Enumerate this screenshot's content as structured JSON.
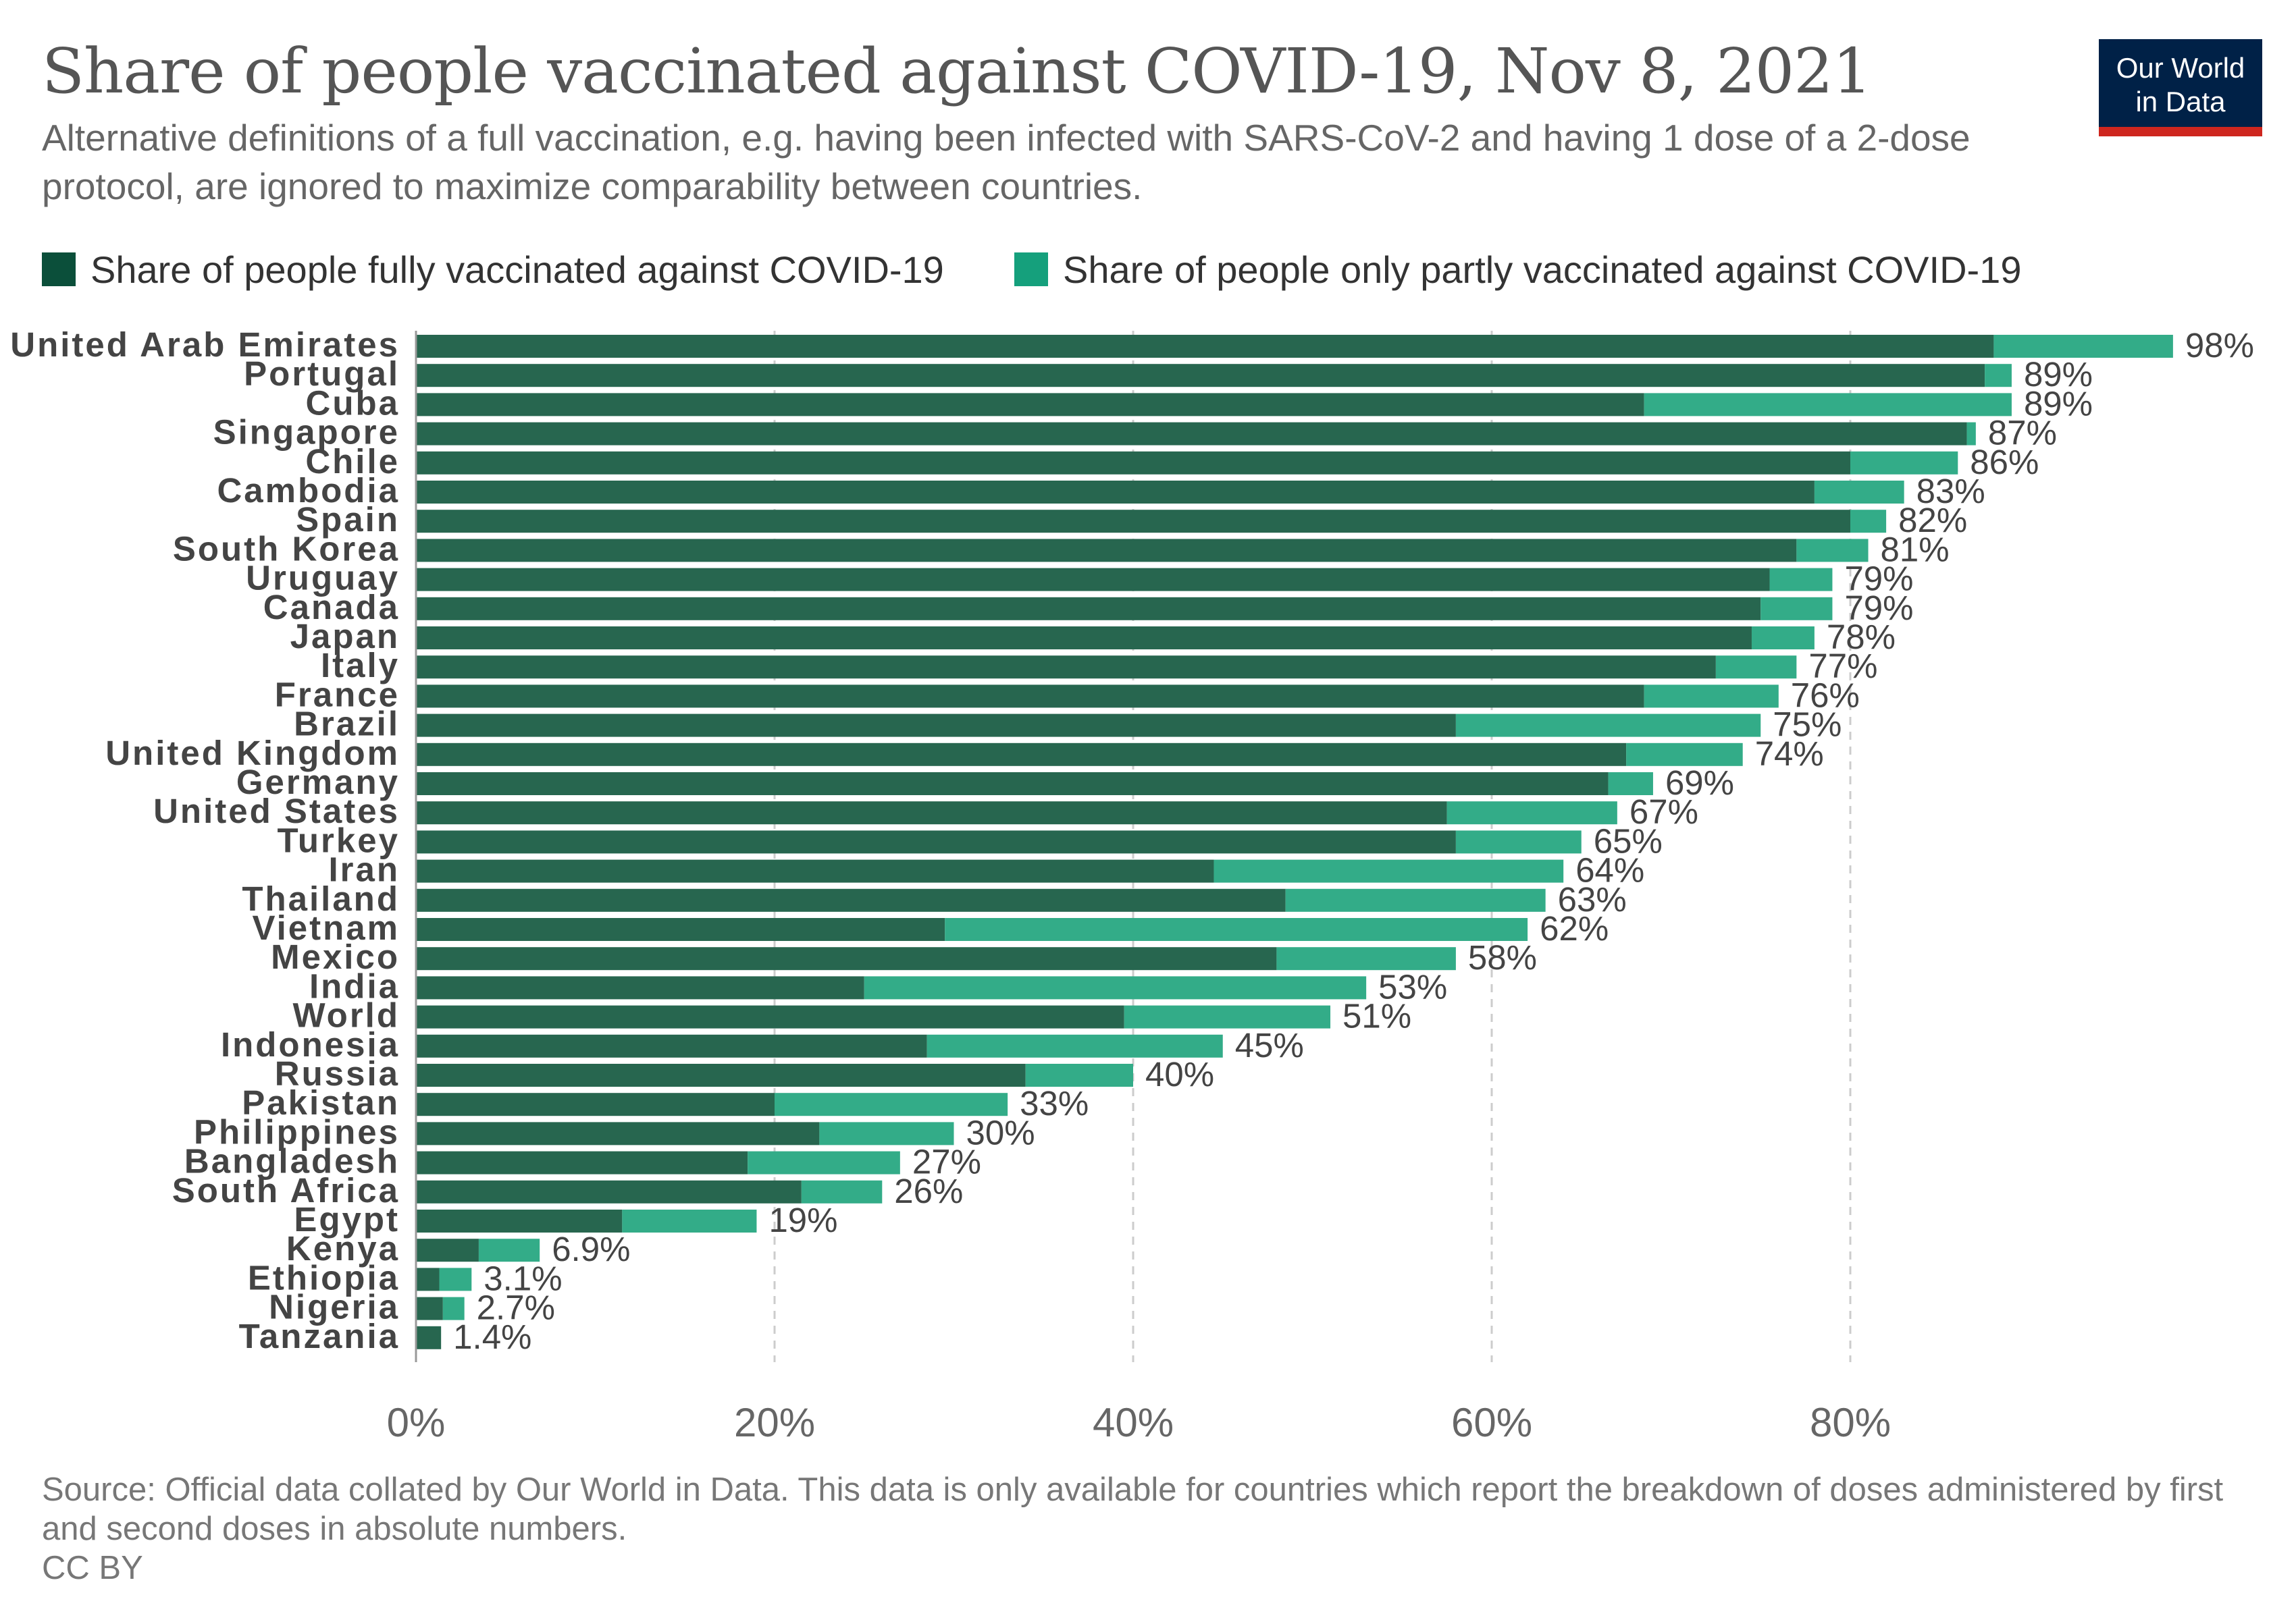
{
  "header": {
    "title": "Share of people vaccinated against COVID-19, Nov 8, 2021",
    "subtitle": "Alternative definitions of a full vaccination, e.g. having been infected with SARS-CoV-2 and having 1 dose of a 2-dose protocol, are ignored to maximize comparability between countries."
  },
  "logo": {
    "line1": "Our World",
    "line2": "in Data"
  },
  "colors": {
    "fully": "#27664f",
    "partly": "#33ac88",
    "legend_fully": "#0b4f3a",
    "legend_partly": "#15a07c",
    "grid": "#cccccc",
    "axis_text": "#666666",
    "label_text": "#444444",
    "logo_bg": "#002147",
    "logo_bar": "#ce261e"
  },
  "footer": {
    "source": "Source: Official data collated by Our World in Data. This data is only available for countries which report the breakdown of doses administered by first and second doses in absolute numbers.",
    "license": "CC BY"
  },
  "chart_data": {
    "type": "bar",
    "orientation": "horizontal",
    "stacked": true,
    "title": "Share of people vaccinated against COVID-19, Nov 8, 2021",
    "xlabel": "",
    "ylabel": "",
    "xlim": [
      0,
      100
    ],
    "x_ticks": [
      "0%",
      "20%",
      "40%",
      "60%",
      "80%"
    ],
    "x_tick_values": [
      0,
      20,
      40,
      60,
      80
    ],
    "grid": "vertical dashed",
    "legend_position": "top",
    "categories": [
      "United Arab Emirates",
      "Portugal",
      "Cuba",
      "Singapore",
      "Chile",
      "Cambodia",
      "Spain",
      "South Korea",
      "Uruguay",
      "Canada",
      "Japan",
      "Italy",
      "France",
      "Brazil",
      "United Kingdom",
      "Germany",
      "United States",
      "Turkey",
      "Iran",
      "Thailand",
      "Vietnam",
      "Mexico",
      "India",
      "World",
      "Indonesia",
      "Russia",
      "Pakistan",
      "Philippines",
      "Bangladesh",
      "South Africa",
      "Egypt",
      "Kenya",
      "Ethiopia",
      "Nigeria",
      "Tanzania"
    ],
    "series": [
      {
        "name": "Share of people fully vaccinated against COVID-19",
        "values": [
          88,
          87.5,
          68.5,
          86.5,
          80,
          78,
          80,
          77,
          75.5,
          75,
          74.5,
          72.5,
          68.5,
          58,
          67.5,
          66.5,
          57.5,
          58,
          44.5,
          48.5,
          29.5,
          48,
          25,
          39.5,
          28.5,
          34,
          20,
          22.5,
          18.5,
          21.5,
          11.5,
          3.5,
          1.3,
          1.5,
          1.4
        ]
      },
      {
        "name": "Share of people only partly vaccinated against COVID-19",
        "values": [
          10,
          1.5,
          20.5,
          0.5,
          6,
          5,
          2,
          4,
          3.5,
          4,
          3.5,
          4.5,
          7.5,
          17,
          6.5,
          2.5,
          9.5,
          7,
          19.5,
          14.5,
          32.5,
          10,
          28,
          11.5,
          16.5,
          6,
          13,
          7.5,
          8.5,
          4.5,
          7.5,
          3.4,
          1.8,
          1.2,
          0
        ]
      }
    ],
    "total_labels": [
      "98%",
      "89%",
      "89%",
      "87%",
      "86%",
      "83%",
      "82%",
      "81%",
      "79%",
      "79%",
      "78%",
      "77%",
      "76%",
      "75%",
      "74%",
      "69%",
      "67%",
      "65%",
      "64%",
      "63%",
      "62%",
      "58%",
      "53%",
      "51%",
      "45%",
      "40%",
      "33%",
      "30%",
      "27%",
      "26%",
      "19%",
      "6.9%",
      "3.1%",
      "2.7%",
      "1.4%"
    ]
  }
}
